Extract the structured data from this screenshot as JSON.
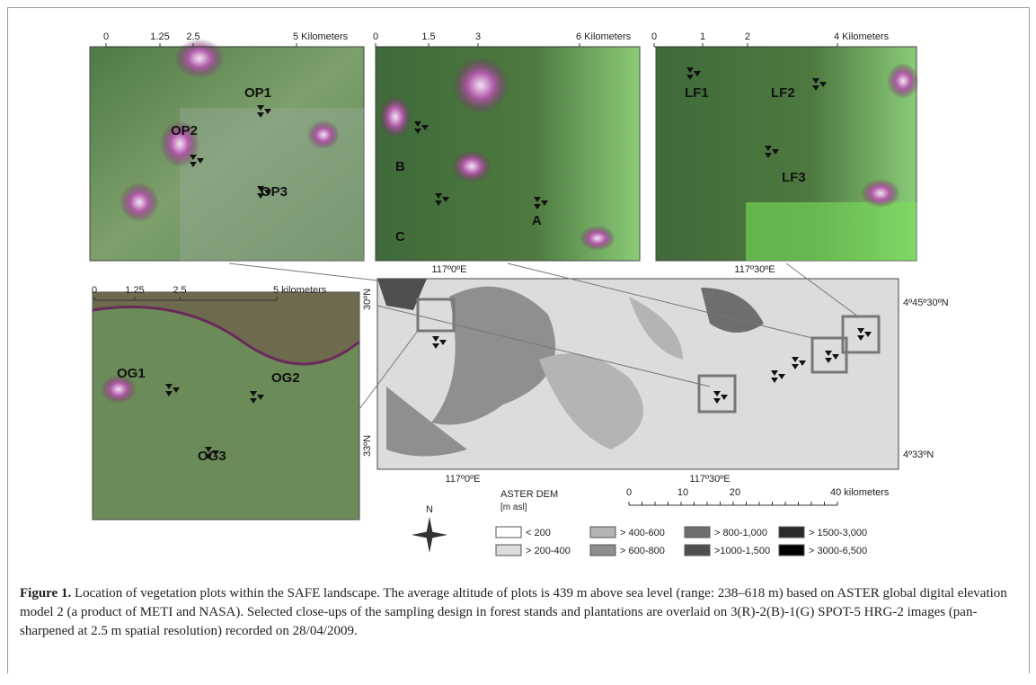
{
  "panels": [
    {
      "scale": [
        "0",
        "1.25",
        "2.5",
        "5 Kilometers"
      ],
      "labels": [
        "OP1",
        "OP2",
        "OP3"
      ]
    },
    {
      "scale": [
        "0",
        "1.5",
        "3",
        "6 Kilometers"
      ],
      "labels": [
        "B",
        "C",
        "A"
      ]
    },
    {
      "scale": [
        "0",
        "1",
        "2",
        "4 Kilometers"
      ],
      "labels": [
        "LF1",
        "LF2",
        "LF3"
      ]
    },
    {
      "scale": [
        "0",
        "1.25",
        "2.5",
        "5 kilometers"
      ],
      "labels": [
        "OG1",
        "OG2",
        "OG3"
      ]
    }
  ],
  "map": {
    "top_lon": [
      "117º0ºE",
      "117º30ºE"
    ],
    "bottom_lon": [
      "117º0ºE",
      "117º30ºE"
    ],
    "right_lat": [
      "4º45º30ºN",
      "4º33ºN"
    ],
    "left_lat": [
      "30ºN",
      "33ºN"
    ],
    "scale": [
      "0",
      "10",
      "20",
      "40 kilometers"
    ],
    "north": "N"
  },
  "legend": {
    "title": "ASTER DEM",
    "unit": "[m asl]",
    "items": [
      {
        "label": "< 200",
        "color": "#ffffff"
      },
      {
        "label": "> 200-400",
        "color": "#dcdcdc"
      },
      {
        "label": "> 400-600",
        "color": "#b4b4b4"
      },
      {
        "label": "> 600-800",
        "color": "#8f8f8f"
      },
      {
        "label": "> 800-1,000",
        "color": "#6e6e6e"
      },
      {
        "label": ">1000-1,500",
        "color": "#4e4e4e"
      },
      {
        "label": "> 1500-3,000",
        "color": "#2a2a2a"
      },
      {
        "label": "> 3000-6,500",
        "color": "#000000"
      }
    ]
  },
  "caption": {
    "label": "Figure 1.",
    "text": " Location of vegetation plots within the SAFE landscape. The average altitude of plots is 439 m above sea level (range: 238–618 m) based on ASTER global digital elevation model 2 (a product of METI and NASA). Selected close-ups of the sampling design in forest stands and plantations are overlaid on 3(R)-2(B)-1(G) SPOT-5 HRG-2 images (pan-sharpened at 2.5 m spatial resolution) recorded on 28/04/2009."
  }
}
